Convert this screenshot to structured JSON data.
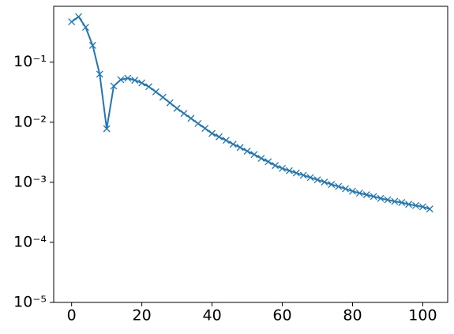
{
  "chart_data": {
    "type": "line",
    "log_y": true,
    "marker": "x",
    "x": [
      0,
      2,
      4,
      6,
      8,
      10,
      12,
      14,
      16,
      18,
      20,
      22,
      24,
      26,
      28,
      30,
      32,
      34,
      36,
      38,
      40,
      42,
      44,
      46,
      48,
      50,
      52,
      54,
      56,
      58,
      60,
      62,
      64,
      66,
      68,
      70,
      72,
      74,
      76,
      78,
      80,
      82,
      84,
      86,
      88,
      90,
      92,
      94,
      96,
      98,
      100,
      102
    ],
    "series": [
      {
        "color": "#1f77b4",
        "values": [
          0.47,
          0.57,
          0.38,
          0.19,
          0.063,
          0.0078,
          0.04,
          0.051,
          0.054,
          0.05,
          0.045,
          0.039,
          0.032,
          0.026,
          0.021,
          0.017,
          0.014,
          0.0116,
          0.0095,
          0.0079,
          0.0065,
          0.0057,
          0.005,
          0.0043,
          0.0038,
          0.0033,
          0.0029,
          0.0025,
          0.0022,
          0.0019,
          0.0017,
          0.00156,
          0.00143,
          0.00131,
          0.0012,
          0.0011,
          0.00101,
          0.00092,
          0.00085,
          0.00078,
          0.00071,
          0.00066,
          0.00062,
          0.00058,
          0.00054,
          0.00051,
          0.00048,
          0.00046,
          0.00043,
          0.00041,
          0.00039,
          0.00036
        ]
      }
    ],
    "xlim": [
      -5.1,
      107.1
    ],
    "xticks": [
      0,
      20,
      40,
      60,
      80,
      100
    ],
    "ylim": [
      1e-05,
      0.85
    ],
    "yticks": [
      {
        "value": 1e-05,
        "label": "10⁻⁵"
      },
      {
        "value": 0.0001,
        "label": "10⁻⁴"
      },
      {
        "value": 0.001,
        "label": "10⁻³"
      },
      {
        "value": 0.01,
        "label": "10⁻²"
      },
      {
        "value": 0.1,
        "label": "10⁻¹"
      }
    ]
  }
}
